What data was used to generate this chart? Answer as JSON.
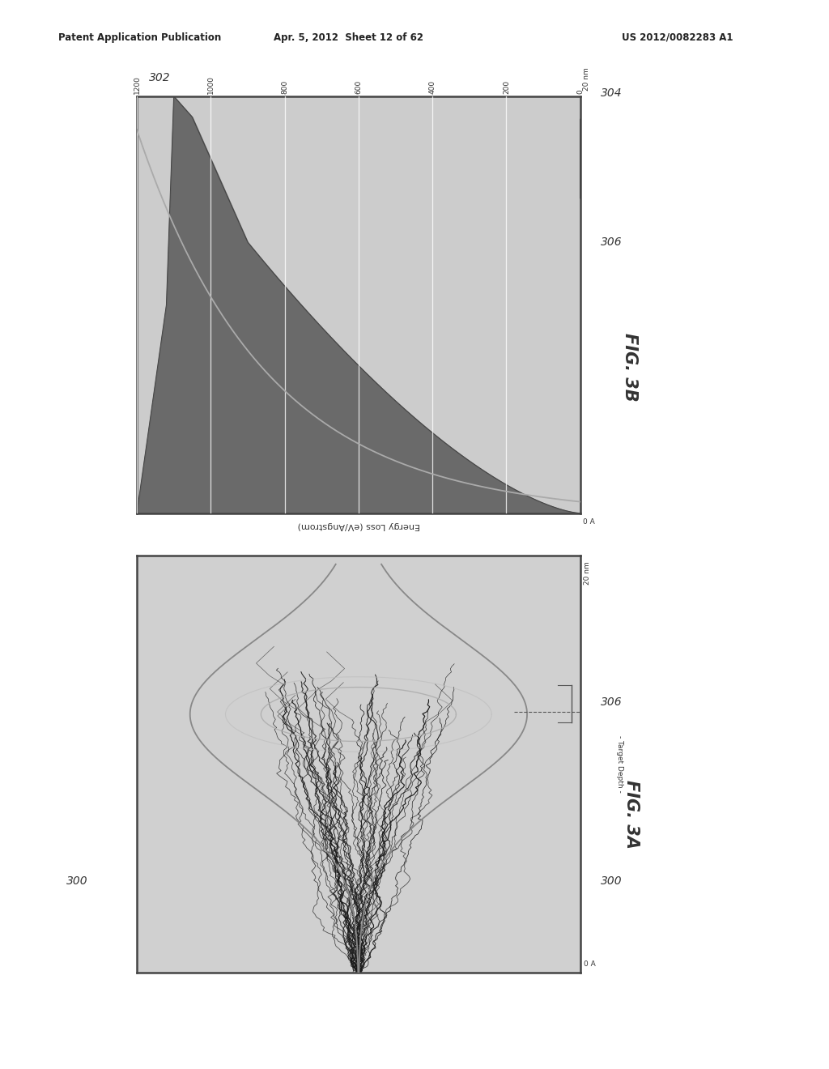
{
  "header_left": "Patent Application Publication",
  "header_center": "Apr. 5, 2012  Sheet 12 of 62",
  "header_right": "US 2012/0082283 A1",
  "fig3a_label": "FIG. 3A",
  "fig3b_label": "FIG. 3B",
  "label_302": "302",
  "label_304": "304",
  "label_306_3b": "306",
  "label_300_left": "300",
  "label_300_right": "300",
  "label_306_3a": "306",
  "ytick_labels": [
    "1200",
    "1000",
    "800",
    "600",
    "400",
    "200",
    "0"
  ],
  "xlabel_3b": "Energy Loss (eV/Angstrom)",
  "background_color": "#ffffff",
  "plot_bg_color": "#cccccc",
  "fill_color": "#666666",
  "grid_line_color": "#ffffff",
  "curve_line_color": "#999999",
  "track_color": "#222222",
  "border_color": "#444444"
}
